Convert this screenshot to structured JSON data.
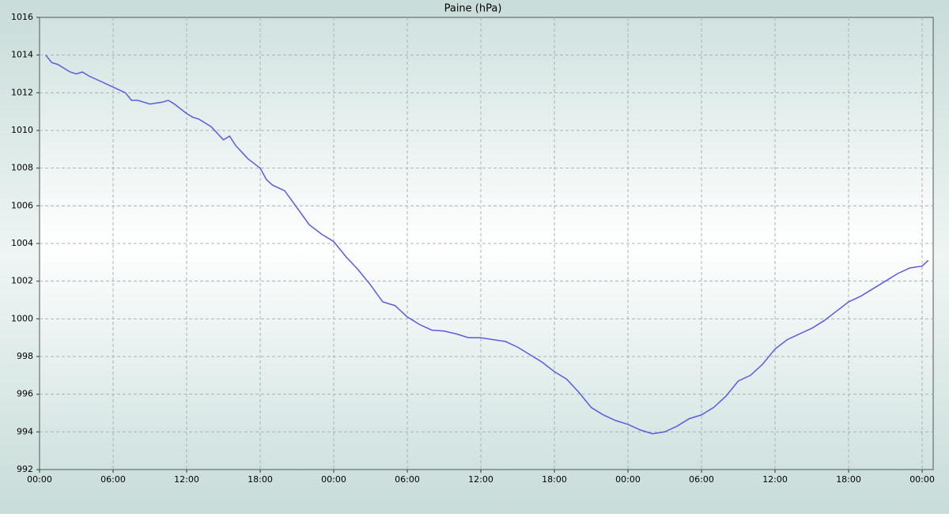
{
  "chart_data": {
    "type": "line",
    "title": "Paine (hPa)",
    "x": [
      0.5,
      1,
      1.5,
      2,
      2.5,
      3,
      3.5,
      4,
      5,
      6,
      7,
      7.5,
      8,
      9,
      10,
      10.5,
      11,
      12,
      12.5,
      13,
      14,
      15,
      15.5,
      16,
      17,
      18,
      18.5,
      19,
      20,
      21,
      22,
      23,
      24,
      25,
      26,
      27,
      28,
      29,
      30,
      31,
      32,
      33,
      34,
      35,
      36,
      37,
      38,
      39,
      40,
      41,
      42,
      43,
      44,
      45,
      46,
      47,
      48,
      49,
      50,
      51,
      52,
      53,
      54,
      55,
      56,
      57,
      58,
      59,
      60,
      61,
      62,
      63,
      64,
      65,
      66,
      67,
      68,
      69,
      70,
      71,
      72,
      72.5
    ],
    "series": [
      {
        "name": "Paine",
        "color": "#5b5bdc",
        "values": [
          1014.0,
          1013.6,
          1013.5,
          1013.3,
          1013.1,
          1013.0,
          1013.1,
          1012.9,
          1012.6,
          1012.3,
          1012.0,
          1011.6,
          1011.6,
          1011.4,
          1011.5,
          1011.6,
          1011.4,
          1010.9,
          1010.7,
          1010.6,
          1010.2,
          1009.5,
          1009.7,
          1009.2,
          1008.5,
          1008.0,
          1007.4,
          1007.1,
          1006.8,
          1005.9,
          1005.0,
          1004.5,
          1004.1,
          1003.3,
          1002.6,
          1001.8,
          1000.9,
          1000.7,
          1000.1,
          999.7,
          999.4,
          999.35,
          999.2,
          999.0,
          999.0,
          998.9,
          998.8,
          998.5,
          998.1,
          997.7,
          997.2,
          996.8,
          996.1,
          995.3,
          994.9,
          994.6,
          994.4,
          994.1,
          993.9,
          994.0,
          994.3,
          994.7,
          994.9,
          995.3,
          995.9,
          996.7,
          997.0,
          997.6,
          998.4,
          998.9,
          999.2,
          999.5,
          999.9,
          1000.4,
          1000.9,
          1001.2,
          1001.6,
          1002.0,
          1002.4,
          1002.7,
          1002.8,
          1003.1
        ]
      }
    ],
    "xlim": [
      0,
      72.9
    ],
    "xticks": [
      {
        "value": 0,
        "label": "00:00"
      },
      {
        "value": 6,
        "label": "06:00"
      },
      {
        "value": 12,
        "label": "12:00"
      },
      {
        "value": 18,
        "label": "18:00"
      },
      {
        "value": 24,
        "label": "00:00"
      },
      {
        "value": 30,
        "label": "06:00"
      },
      {
        "value": 36,
        "label": "12:00"
      },
      {
        "value": 42,
        "label": "18:00"
      },
      {
        "value": 48,
        "label": "00:00"
      },
      {
        "value": 54,
        "label": "06:00"
      },
      {
        "value": 60,
        "label": "12:00"
      },
      {
        "value": 66,
        "label": "18:00"
      },
      {
        "value": 72,
        "label": "00:00"
      }
    ],
    "ylim": [
      992,
      1016
    ],
    "yticks": [
      992,
      994,
      996,
      998,
      1000,
      1002,
      1004,
      1006,
      1008,
      1010,
      1012,
      1014,
      1016
    ],
    "grid": true
  }
}
